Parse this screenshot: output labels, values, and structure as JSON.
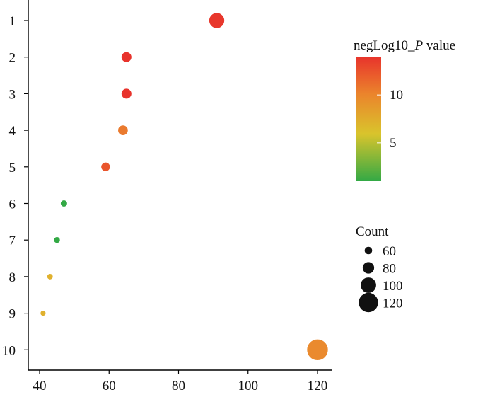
{
  "chart_data": {
    "type": "scatter",
    "title": "",
    "xlabel": "",
    "ylabel": "",
    "xlim": [
      39,
      124
    ],
    "x_ticks": [
      40,
      60,
      80,
      100,
      120
    ],
    "categories": [
      "1",
      "2",
      "3",
      "4",
      "5",
      "6",
      "7",
      "8",
      "9",
      "10"
    ],
    "points": [
      {
        "category": "1",
        "count": 91,
        "neglog10_p": 13.5,
        "color": "#e8372c"
      },
      {
        "category": "2",
        "count": 65,
        "neglog10_p": 14.0,
        "color": "#e8332c"
      },
      {
        "category": "3",
        "count": 65,
        "neglog10_p": 14.0,
        "color": "#e8332c"
      },
      {
        "category": "4",
        "count": 64,
        "neglog10_p": 11.0,
        "color": "#ea7a2e"
      },
      {
        "category": "5",
        "count": 59,
        "neglog10_p": 12.5,
        "color": "#e9552c"
      },
      {
        "category": "6",
        "count": 47,
        "neglog10_p": 1.5,
        "color": "#33a945"
      },
      {
        "category": "7",
        "count": 45,
        "neglog10_p": 1.5,
        "color": "#33a945"
      },
      {
        "category": "8",
        "count": 43,
        "neglog10_p": 7.5,
        "color": "#e0b12e"
      },
      {
        "category": "9",
        "count": 41,
        "neglog10_p": 7.5,
        "color": "#e0b12e"
      },
      {
        "category": "10",
        "count": 120,
        "neglog10_p": 10.0,
        "color": "#ea8a2e"
      }
    ],
    "color_legend": {
      "title_prefix": "negLog10_",
      "title_italic": "P",
      "title_suffix": " value",
      "range": [
        1,
        14
      ],
      "ticks": [
        "5",
        "10"
      ],
      "tick_values": [
        5,
        10
      ],
      "colors": [
        "#e8332c",
        "#eb842c",
        "#d9c42c",
        "#33a945"
      ]
    },
    "size_legend": {
      "title": "Count",
      "labels": [
        "60",
        "80",
        "100",
        "120"
      ],
      "values": [
        60,
        80,
        100,
        120
      ]
    },
    "legend_position": "right"
  }
}
